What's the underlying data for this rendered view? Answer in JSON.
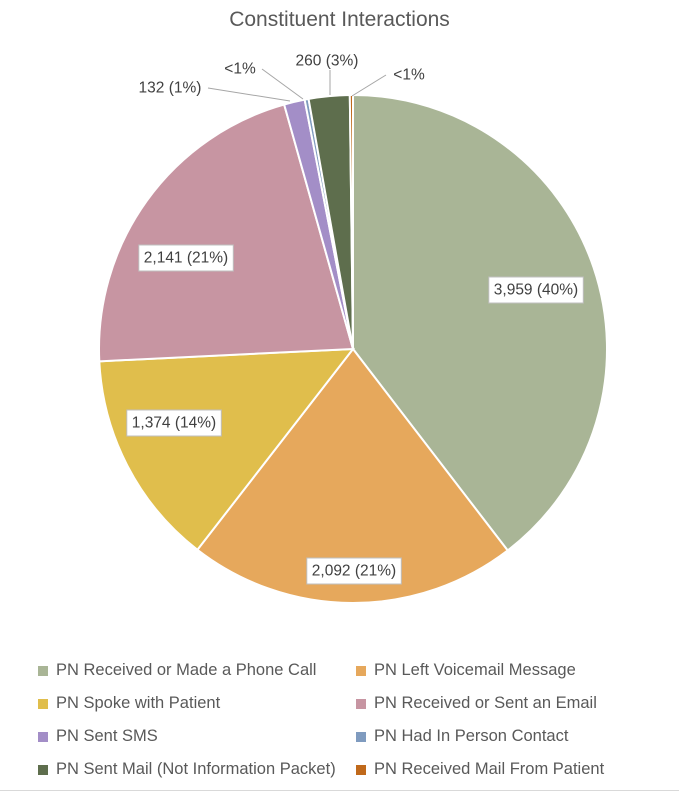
{
  "chart_data": {
    "type": "pie",
    "title": "Constituent Interactions",
    "slices": [
      {
        "name": "PN Received or Made a Phone Call",
        "value": 3959,
        "label": "3,959 (40%)",
        "color": "#a9b596"
      },
      {
        "name": "PN Left Voicemail Message",
        "value": 2092,
        "label": "2,092 (21%)",
        "color": "#e6a85c"
      },
      {
        "name": "PN Spoke with Patient",
        "value": 1374,
        "label": "1,374 (14%)",
        "color": "#e0be4c"
      },
      {
        "name": "PN Received or Sent an Email",
        "value": 2141,
        "label": "2,141 (21%)",
        "color": "#c795a2"
      },
      {
        "name": "PN Sent SMS",
        "value": 132,
        "label": "132 (1%)",
        "color": "#a38ec7"
      },
      {
        "name": "PN Had In Person Contact",
        "value": 25,
        "label": "<1%",
        "color": "#7f9bbf"
      },
      {
        "name": "PN Sent Mail (Not Information Packet)",
        "value": 260,
        "label": "260 (3%)",
        "color": "#5e6e4d"
      },
      {
        "name": "PN Received Mail From Patient",
        "value": 20,
        "label": "<1%",
        "color": "#c0691b"
      }
    ],
    "start_angle_deg": 0,
    "direction": "clockwise",
    "legend_position": "bottom"
  }
}
